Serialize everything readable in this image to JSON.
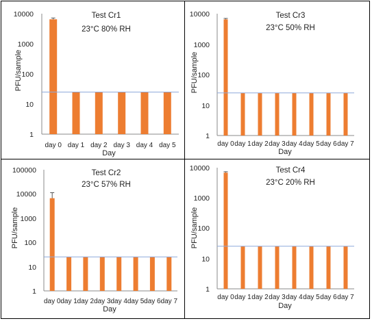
{
  "chart_data": [
    {
      "type": "bar",
      "panel": "top-left",
      "title": "Test Cr1",
      "subtitle": "23°C 80% RH",
      "xlabel": "Day",
      "ylabel": "PFU/sample",
      "yscale": "log",
      "ylim": [
        1,
        10000
      ],
      "yticks": [
        "1",
        "10",
        "100",
        "1000",
        "10000"
      ],
      "categories": [
        "day 0",
        "day 1",
        "day 2",
        "day 3",
        "day 4",
        "day 5"
      ],
      "values": [
        6500,
        25,
        25,
        25,
        25,
        25
      ],
      "errors": [
        [
          6000,
          7200
        ],
        null,
        null,
        null,
        null,
        null
      ],
      "detection_limit": 25
    },
    {
      "type": "bar",
      "panel": "top-right",
      "title": "Test Cr3",
      "subtitle": "23°C 50% RH",
      "xlabel": "Day",
      "ylabel": "PFU/sample",
      "yscale": "log",
      "ylim": [
        1,
        10000
      ],
      "yticks": [
        "1",
        "10",
        "100",
        "1000",
        "10000"
      ],
      "categories": [
        "day 0",
        "day 1",
        "day 2",
        "day 3",
        "day 4",
        "day 5",
        "day 6",
        "day 7"
      ],
      "values": [
        6500,
        25,
        25,
        25,
        25,
        25,
        25,
        25
      ],
      "errors": [
        [
          6000,
          7000
        ],
        null,
        null,
        null,
        null,
        null,
        null,
        null
      ],
      "detection_limit": 25
    },
    {
      "type": "bar",
      "panel": "bottom-left",
      "title": "Test Cr2",
      "subtitle": "23°C 57% RH",
      "xlabel": "Day",
      "ylabel": "PFU/sample",
      "yscale": "log",
      "ylim": [
        1,
        100000
      ],
      "yticks": [
        "1",
        "10",
        "100",
        "1000",
        "10000",
        "100000"
      ],
      "categories": [
        "day 0",
        "day 1",
        "day 2",
        "day 3",
        "day 4",
        "day 5",
        "day 6",
        "day 7"
      ],
      "values": [
        6500,
        25,
        25,
        25,
        25,
        25,
        25,
        25
      ],
      "errors": [
        [
          3500,
          11000
        ],
        null,
        null,
        null,
        null,
        null,
        null,
        null
      ],
      "detection_limit": 25
    },
    {
      "type": "bar",
      "panel": "bottom-right",
      "title": "Test Cr4",
      "subtitle": "23°C 20% RH",
      "xlabel": "Day",
      "ylabel": "PFU/sample",
      "yscale": "log",
      "ylim": [
        1,
        10000
      ],
      "yticks": [
        "1",
        "10",
        "100",
        "1000",
        "10000"
      ],
      "categories": [
        "day 0",
        "day 1",
        "day 2",
        "day 3",
        "day 4",
        "day 5",
        "day 6",
        "day 7"
      ],
      "values": [
        6500,
        25,
        25,
        25,
        25,
        25,
        25,
        25
      ],
      "errors": [
        [
          6000,
          7000
        ],
        null,
        null,
        null,
        null,
        null,
        null,
        null
      ],
      "detection_limit": 25
    }
  ],
  "colors": {
    "bar": "#ED7D31",
    "limit_line": "#8EA9DB",
    "axis": "#888888",
    "error_bar": "#555555",
    "panel_border": "#000000"
  }
}
